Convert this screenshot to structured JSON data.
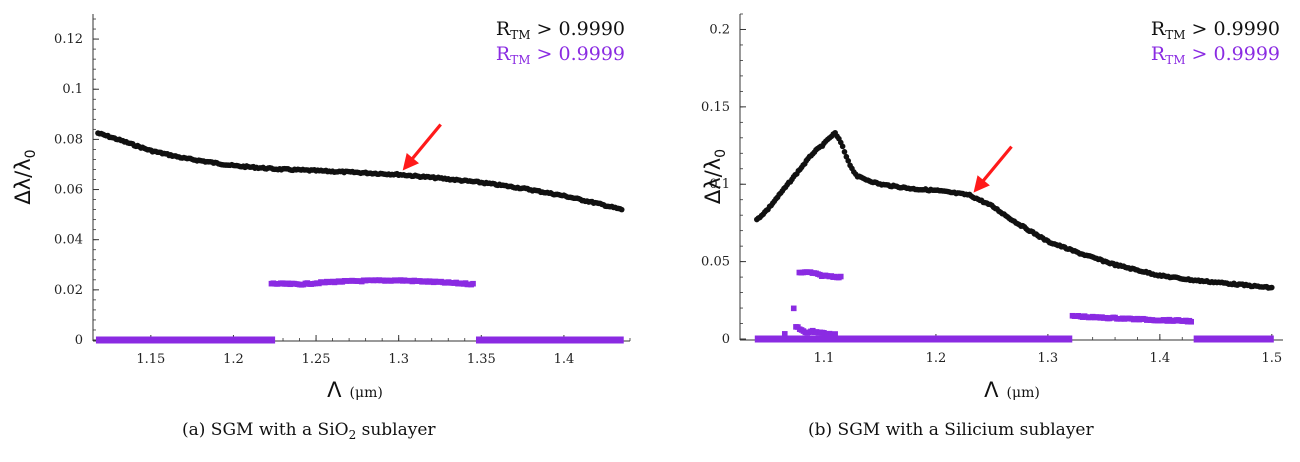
{
  "colors": {
    "black_series": "#111111",
    "purple_series": "#8a2be2",
    "arrow": "#ff1a1a",
    "axis": "#333333"
  },
  "chart_data": [
    {
      "type": "scatter",
      "caption": "(a) SGM with a SiO2 sublayer",
      "xlabel": "Λ",
      "xunit": "(μm)",
      "ylabel": "Δλ/λ0",
      "xlim": [
        1.115,
        1.44
      ],
      "ylim": [
        0,
        0.13
      ],
      "xticks": [
        1.15,
        1.2,
        1.25,
        1.3,
        1.35,
        1.4
      ],
      "yticks": [
        0,
        0.02,
        0.04,
        0.06,
        0.08,
        0.1,
        0.12
      ],
      "xtick_labels": [
        "1.15",
        "1.2",
        "1.25",
        "1.3",
        "1.35",
        "1.4"
      ],
      "ytick_labels": [
        "0",
        "0.02",
        "0.04",
        "0.06",
        "0.08",
        "0.1",
        "0.12"
      ],
      "legend": [
        "RTM > 0.9990",
        "RTM > 0.9999"
      ],
      "legend_placement": "top-right",
      "annotation": {
        "type": "arrow",
        "points_to": [
          1.3,
          0.066
        ]
      },
      "series": [
        {
          "name": "RTM > 0.9990",
          "marker": "circle",
          "color": "#111111",
          "points": [
            [
              1.118,
              0.0825
            ],
            [
              1.13,
              0.08
            ],
            [
              1.15,
              0.0755
            ],
            [
              1.17,
              0.0725
            ],
            [
              1.2,
              0.0695
            ],
            [
              1.225,
              0.0682
            ],
            [
              1.25,
              0.0675
            ],
            [
              1.275,
              0.0668
            ],
            [
              1.3,
              0.066
            ],
            [
              1.325,
              0.0645
            ],
            [
              1.35,
              0.0628
            ],
            [
              1.375,
              0.0605
            ],
            [
              1.4,
              0.0575
            ],
            [
              1.42,
              0.0545
            ],
            [
              1.435,
              0.052
            ]
          ]
        },
        {
          "name": "RTM > 0.9999",
          "marker": "square",
          "color": "#8a2be2",
          "points": [
            [
              1.223,
              0.0225
            ],
            [
              1.24,
              0.0222
            ],
            [
              1.26,
              0.0232
            ],
            [
              1.28,
              0.0236
            ],
            [
              1.3,
              0.0238
            ],
            [
              1.32,
              0.0232
            ],
            [
              1.345,
              0.0223
            ]
          ]
        },
        {
          "name": "RTM > 0.9999 (baseline)",
          "marker": "square",
          "color": "#8a2be2",
          "segments": [
            [
              1.118,
              1.224,
              0
            ],
            [
              1.348,
              1.435,
              0
            ]
          ]
        }
      ]
    },
    {
      "type": "scatter",
      "caption": "(b) SGM with a Silicium sublayer",
      "xlabel": "Λ",
      "xunit": "(μm)",
      "ylabel": "Δλ/λ0",
      "xlim": [
        1.025,
        1.51
      ],
      "ylim": [
        0,
        0.21
      ],
      "xticks": [
        1.1,
        1.2,
        1.3,
        1.4,
        1.5
      ],
      "yticks": [
        0,
        0.05,
        0.1,
        0.15,
        0.2
      ],
      "xtick_labels": [
        "1.1",
        "1.2",
        "1.3",
        "1.4",
        "1.5"
      ],
      "ytick_labels": [
        "0",
        "0.05",
        "0.1",
        "0.15",
        "0.2"
      ],
      "legend": [
        "RTM > 0.9990",
        "RTM > 0.9999"
      ],
      "legend_placement": "top-right",
      "annotation": {
        "type": "arrow",
        "points_to": [
          1.23,
          0.092
        ]
      },
      "series": [
        {
          "name": "RTM > 0.9990",
          "marker": "circle",
          "color": "#111111",
          "points": [
            [
              1.04,
              0.077
            ],
            [
              1.05,
              0.084
            ],
            [
              1.06,
              0.093
            ],
            [
              1.07,
              0.102
            ],
            [
              1.08,
              0.111
            ],
            [
              1.09,
              0.12
            ],
            [
              1.1,
              0.126
            ],
            [
              1.105,
              0.13
            ],
            [
              1.11,
              0.133
            ],
            [
              1.115,
              0.127
            ],
            [
              1.12,
              0.118
            ],
            [
              1.125,
              0.11
            ],
            [
              1.13,
              0.105
            ],
            [
              1.15,
              0.1
            ],
            [
              1.18,
              0.097
            ],
            [
              1.2,
              0.096
            ],
            [
              1.23,
              0.093
            ],
            [
              1.25,
              0.086
            ],
            [
              1.27,
              0.076
            ],
            [
              1.3,
              0.063
            ],
            [
              1.33,
              0.055
            ],
            [
              1.36,
              0.048
            ],
            [
              1.4,
              0.041
            ],
            [
              1.43,
              0.038
            ],
            [
              1.46,
              0.036
            ],
            [
              1.5,
              0.033
            ]
          ]
        },
        {
          "name": "RTM > 0.9999",
          "marker": "square",
          "color": "#8a2be2",
          "points": [
            [
              1.078,
              0.043
            ],
            [
              1.083,
              0.043
            ],
            [
              1.088,
              0.043
            ],
            [
              1.093,
              0.042
            ],
            [
              1.098,
              0.041
            ],
            [
              1.115,
              0.04
            ],
            [
              1.073,
              0.02
            ],
            [
              1.075,
              0.008
            ],
            [
              1.08,
              0.006
            ],
            [
              1.085,
              0.004
            ],
            [
              1.09,
              0.005
            ],
            [
              1.095,
              0.004
            ],
            [
              1.1,
              0.004
            ],
            [
              1.105,
              0.003
            ],
            [
              1.11,
              0.003
            ],
            [
              1.065,
              0.003
            ],
            [
              1.322,
              0.015
            ],
            [
              1.34,
              0.014
            ],
            [
              1.36,
              0.0135
            ],
            [
              1.38,
              0.0128
            ],
            [
              1.4,
              0.0122
            ],
            [
              1.42,
              0.0118
            ],
            [
              1.428,
              0.0115
            ]
          ]
        },
        {
          "name": "RTM > 0.9999 (baseline)",
          "marker": "square",
          "color": "#8a2be2",
          "segments": [
            [
              1.04,
              1.32,
              0
            ],
            [
              1.432,
              1.5,
              0
            ]
          ]
        }
      ]
    }
  ]
}
